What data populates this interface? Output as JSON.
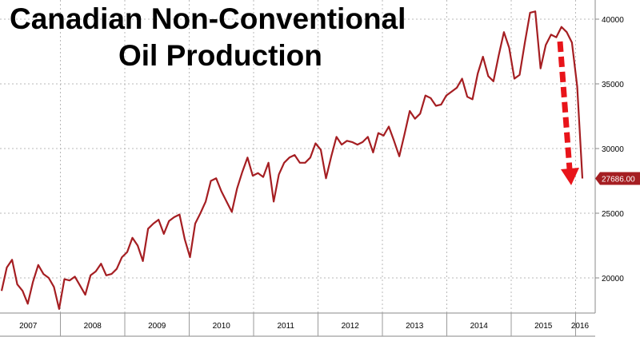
{
  "chart_data": {
    "type": "line",
    "title_lines": [
      "Canadian Non-Conventional",
      "Oil Production"
    ],
    "xlabel": "",
    "ylabel": "",
    "ylim": [
      17000,
      42000
    ],
    "y_ticks": [
      20000,
      25000,
      30000,
      35000,
      40000
    ],
    "year_labels": [
      "2007",
      "2008",
      "2009",
      "2010",
      "2011",
      "2012",
      "2013",
      "2014",
      "2015",
      "2016"
    ],
    "grid": true,
    "last_value_label": "27686.00",
    "colors": {
      "line": "#a51e22",
      "arrow": "#e8141a",
      "label_bg": "#a51e22"
    },
    "series": [
      {
        "values": [
          19000,
          20800,
          21400,
          19500,
          19000,
          18000,
          19700,
          21000,
          20300,
          20000,
          19300,
          17600,
          19900,
          19800,
          20100,
          19400,
          18700,
          20200,
          20500,
          21100,
          20200,
          20300,
          20700,
          21600,
          22000,
          23100,
          22500,
          21300,
          23800,
          24200,
          24500,
          23400,
          24400,
          24700,
          24900,
          23000,
          21600,
          24200,
          25000,
          25900,
          27500,
          27700,
          26700,
          25900,
          25100,
          26900,
          28200,
          29300,
          27900,
          28100,
          27800,
          28900,
          25900,
          28000,
          28900,
          29300,
          29500,
          28900,
          28900,
          29300,
          30400,
          29900,
          27700,
          29400,
          30900,
          30300,
          30600,
          30500,
          30300,
          30500,
          30900,
          29700,
          31200,
          31000,
          31700,
          30600,
          29400,
          31100,
          32900,
          32300,
          32700,
          34100,
          33900,
          33300,
          33400,
          34100,
          34400,
          34700,
          35400,
          34000,
          33800,
          35800,
          37100,
          35600,
          35200,
          37200,
          39000,
          37800,
          35400,
          35700,
          38200,
          40500,
          40600,
          36200,
          38000,
          38800,
          38600,
          39400,
          39000,
          38200,
          34800,
          27686
        ]
      }
    ]
  }
}
